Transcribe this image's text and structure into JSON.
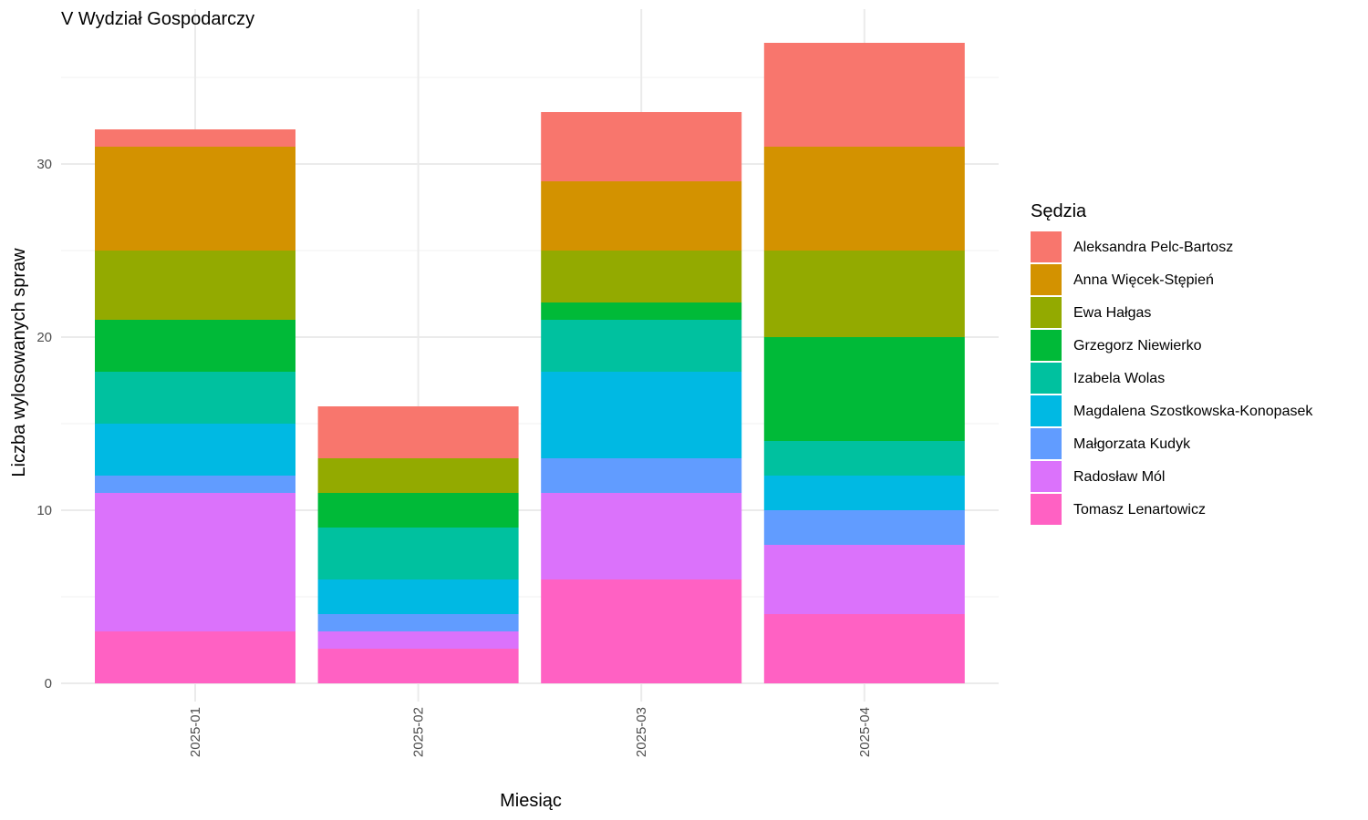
{
  "chart_data": {
    "type": "bar",
    "stacked": true,
    "title": "V Wydział Gospodarczy",
    "xlabel": "Miesiąc",
    "ylabel": "Liczba wylosowanych spraw",
    "categories": [
      "2025-01",
      "2025-02",
      "2025-03",
      "2025-04"
    ],
    "ylim": [
      0,
      38
    ],
    "yticks": [
      0,
      10,
      20,
      30
    ],
    "grid": true,
    "legend": {
      "title": "Sędzia",
      "position": "right"
    },
    "series": [
      {
        "name": "Tomasz Lenartowicz",
        "color": "#FF61C3",
        "values": [
          3,
          2,
          6,
          4
        ]
      },
      {
        "name": "Radosław Mól",
        "color": "#DB72FB",
        "values": [
          8,
          1,
          5,
          4
        ]
      },
      {
        "name": "Małgorzata Kudyk",
        "color": "#619CFF",
        "values": [
          1,
          1,
          2,
          2
        ]
      },
      {
        "name": "Magdalena Szostkowska-Konopasek",
        "color": "#00B9E3",
        "values": [
          3,
          2,
          5,
          2
        ]
      },
      {
        "name": "Izabela Wolas",
        "color": "#00C19F",
        "values": [
          3,
          3,
          3,
          2
        ]
      },
      {
        "name": "Grzegorz Niewierko",
        "color": "#00BA38",
        "values": [
          3,
          2,
          1,
          6
        ]
      },
      {
        "name": "Ewa Hałgas",
        "color": "#93AA00",
        "values": [
          4,
          2,
          3,
          5
        ]
      },
      {
        "name": "Anna Więcek-Stępień",
        "color": "#D39200",
        "values": [
          6,
          0,
          4,
          6
        ]
      },
      {
        "name": "Aleksandra Pelc-Bartosz",
        "color": "#F8766D",
        "values": [
          1,
          3,
          4,
          6
        ]
      }
    ]
  }
}
